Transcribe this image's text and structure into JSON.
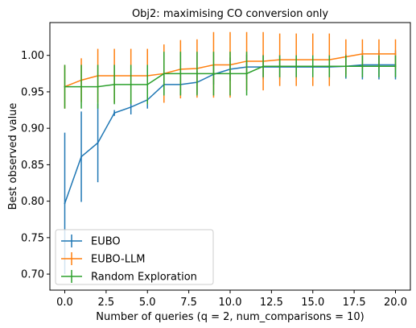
{
  "chart_data": {
    "type": "line",
    "title": "Obj2: maximising CO conversion only",
    "xlabel": "Number of queries (q = 2, num_comparisons = 10)",
    "ylabel": "Best observed value",
    "xlim": [
      -0.9,
      20.9
    ],
    "ylim": [
      0.678,
      1.045
    ],
    "xticks": [
      0.0,
      2.5,
      5.0,
      7.5,
      10.0,
      12.5,
      15.0,
      17.5,
      20.0
    ],
    "xtick_labels": [
      "0.0",
      "2.5",
      "5.0",
      "7.5",
      "10.0",
      "12.5",
      "15.0",
      "17.5",
      "20.0"
    ],
    "yticks": [
      0.7,
      0.75,
      0.8,
      0.85,
      0.9,
      0.95,
      1.0
    ],
    "ytick_labels": [
      "0.70",
      "0.75",
      "0.80",
      "0.85",
      "0.90",
      "0.95",
      "1.00"
    ],
    "grid": false,
    "legend_position": "lower-left",
    "x": [
      0,
      1,
      2,
      3,
      4,
      5,
      6,
      7,
      8,
      9,
      10,
      11,
      12,
      13,
      14,
      15,
      16,
      17,
      18,
      19,
      20
    ],
    "series": [
      {
        "name": "EUBO",
        "color": "#1f77b4",
        "values": [
          0.797,
          0.861,
          0.88,
          0.921,
          0.929,
          0.939,
          0.96,
          0.96,
          0.963,
          0.974,
          0.981,
          0.984,
          0.984,
          0.984,
          0.984,
          0.984,
          0.984,
          0.985,
          0.987,
          0.987,
          0.987
        ],
        "errors": [
          0.097,
          0.062,
          0.054,
          0.004,
          0.01,
          0.012,
          0.013,
          0.014,
          0.016,
          0.014,
          0.016,
          0.017,
          0.017,
          0.017,
          0.017,
          0.017,
          0.017,
          0.017,
          0.02,
          0.02,
          0.02
        ]
      },
      {
        "name": "EUBO-LLM",
        "color": "#ff7f0e",
        "values": [
          0.957,
          0.966,
          0.972,
          0.972,
          0.972,
          0.972,
          0.975,
          0.981,
          0.982,
          0.987,
          0.987,
          0.992,
          0.992,
          0.994,
          0.994,
          0.994,
          0.994,
          0.998,
          1.002,
          1.002,
          1.002
        ],
        "errors": [
          0.03,
          0.03,
          0.037,
          0.037,
          0.037,
          0.037,
          0.04,
          0.04,
          0.04,
          0.045,
          0.045,
          0.04,
          0.04,
          0.036,
          0.036,
          0.036,
          0.036,
          0.024,
          0.02,
          0.02,
          0.02
        ]
      },
      {
        "name": "Random Exploration",
        "color": "#2ca02c",
        "values": [
          0.957,
          0.957,
          0.957,
          0.96,
          0.96,
          0.96,
          0.975,
          0.975,
          0.975,
          0.975,
          0.975,
          0.975,
          0.985,
          0.985,
          0.985,
          0.985,
          0.985,
          0.985,
          0.985,
          0.985,
          0.985
        ],
        "errors": [
          0.03,
          0.03,
          0.03,
          0.027,
          0.027,
          0.027,
          0.03,
          0.03,
          0.03,
          0.03,
          0.03,
          0.03,
          0.015,
          0.015,
          0.015,
          0.015,
          0.015,
          0.015,
          0.015,
          0.015,
          0.015
        ]
      }
    ]
  }
}
